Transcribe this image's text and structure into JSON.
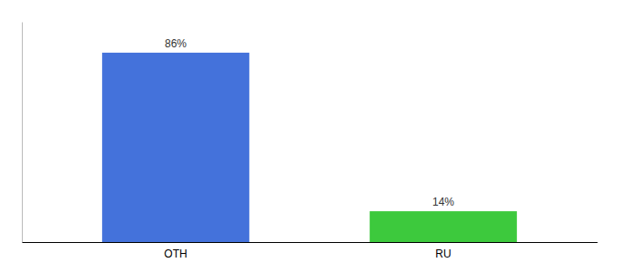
{
  "chart_data": {
    "type": "bar",
    "categories": [
      "OTH",
      "RU"
    ],
    "values": [
      86,
      14
    ],
    "value_labels": [
      "86%",
      "14%"
    ],
    "colors": [
      "#4472db",
      "#3dc93d"
    ],
    "ylim": [
      0,
      100
    ],
    "data_labels": true,
    "tick_labels": "x",
    "grid": false
  }
}
